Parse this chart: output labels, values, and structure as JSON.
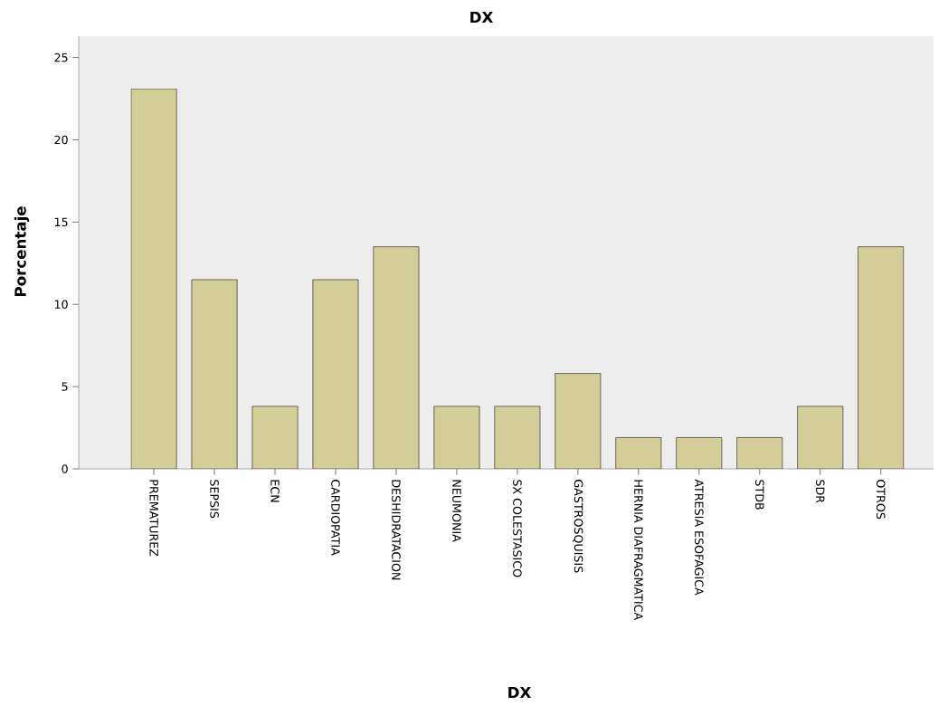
{
  "chart_data": {
    "type": "bar",
    "title": "DX",
    "xlabel": "DX",
    "ylabel": "Porcentaje",
    "categories": [
      "PREMATUREZ",
      "SEPSIS",
      "ECN",
      "CARDIOPATIA",
      "DESHIDRATACION",
      "NEUMONIA",
      "SX COLESTASICO",
      "GASTROSQUISIS",
      "HERNIA DIAFRAGMATICA",
      "ATRESIA ESOFAGICA",
      "STDB",
      "SDR",
      "OTROS"
    ],
    "values": [
      23.1,
      11.5,
      3.8,
      11.5,
      13.5,
      3.8,
      3.8,
      5.8,
      1.9,
      1.9,
      1.9,
      3.8,
      13.5
    ],
    "color": "#d3ce97",
    "ylim": [
      0,
      26.3
    ],
    "yticks": [
      0,
      5,
      10,
      15,
      20,
      25
    ]
  }
}
